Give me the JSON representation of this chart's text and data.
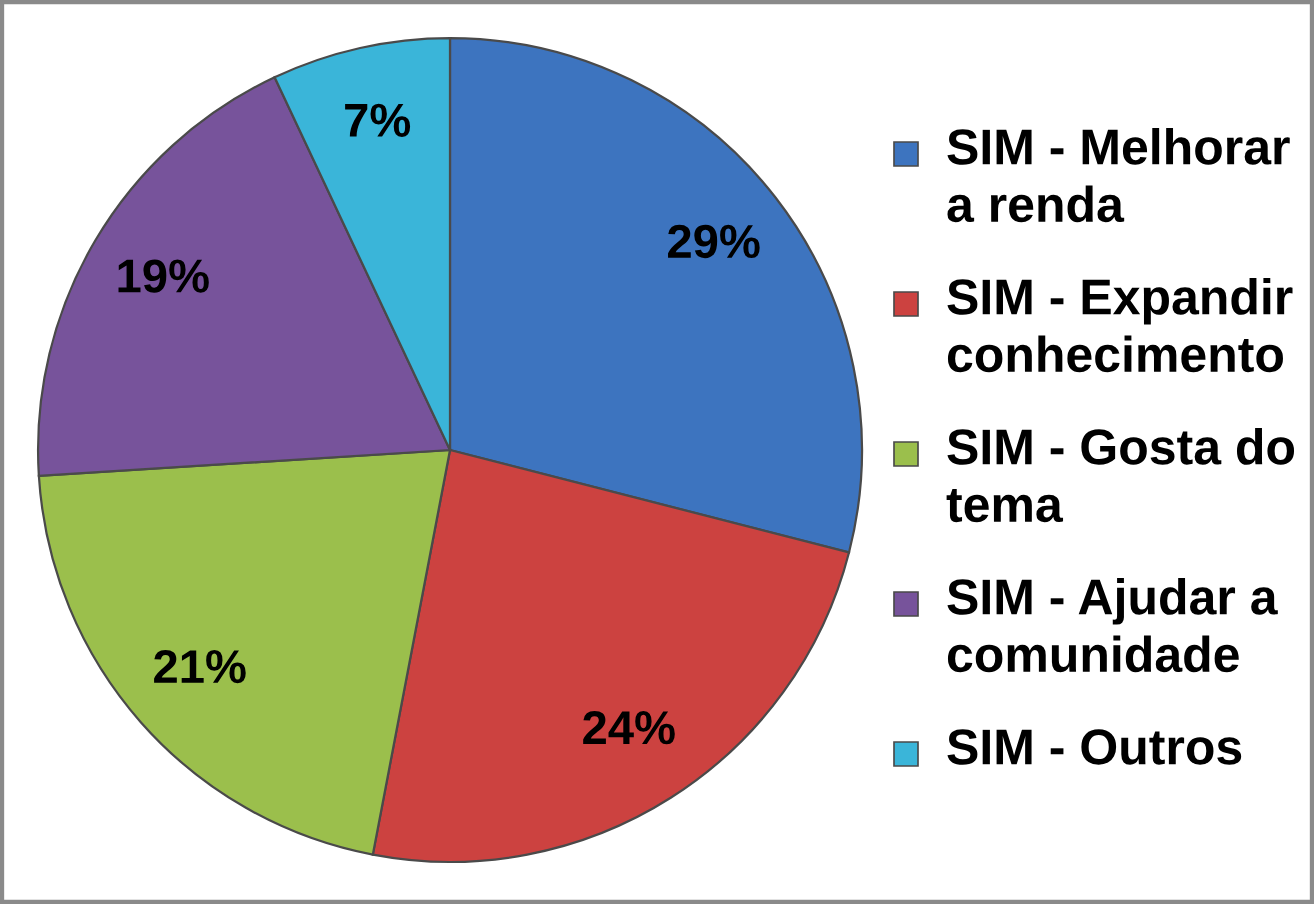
{
  "chart_data": {
    "type": "pie",
    "categories": [
      "SIM - Melhorar a renda",
      "SIM - Expandir conhecimento",
      "SIM - Gosta do tema",
      "SIM - Ajudar a comunidade",
      "SIM - Outros"
    ],
    "values": [
      29,
      24,
      21,
      19,
      7
    ],
    "colors": [
      "#3d74bf",
      "#cc4240",
      "#9bbf4c",
      "#77539b",
      "#3ab5d9"
    ],
    "value_labels": [
      "29%",
      "24%",
      "21%",
      "19%",
      "7%"
    ],
    "legend": "right"
  }
}
